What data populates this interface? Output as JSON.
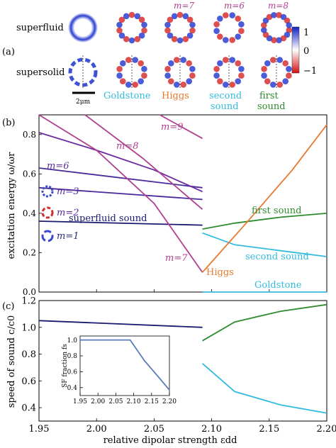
{
  "panel_a": {
    "letter": "(a)",
    "row_labels": [
      "superfluid",
      "supersolid"
    ],
    "m_labels": [
      "m=7",
      "m=6",
      "m=8"
    ],
    "mode_labels": [
      {
        "text": "Goldstone",
        "color": "#33bbdd"
      },
      {
        "text": "Higgs",
        "color": "#e8792e"
      },
      {
        "text": "second",
        "text2": "sound",
        "color": "#33bbdd"
      },
      {
        "text": "first",
        "text2": "sound",
        "color": "#2e8b2e"
      }
    ],
    "scale_bar_label": "2μm",
    "colorbar_ticks": [
      "1",
      "0",
      "−1"
    ]
  },
  "chart_data": [
    {
      "type": "line",
      "panel": "(b)",
      "ylabel": "excitation energy ω/ωr",
      "ylim": [
        0,
        0.9
      ],
      "xlim": [
        1.95,
        2.2
      ],
      "yticks": [
        "0.0",
        "0.2",
        "0.4",
        "0.6",
        "0.8"
      ],
      "annotations": [
        {
          "text": "m=8",
          "color": "#b04090"
        },
        {
          "text": "m=9",
          "color": "#b04090"
        },
        {
          "text": "m=6",
          "color": "#5a2ca0"
        },
        {
          "text": "m=3",
          "color": "#5a2ca0"
        },
        {
          "text": "m=2",
          "color": "#5a2ca0"
        },
        {
          "text": "m=1",
          "color": "#2a2a80"
        },
        {
          "text": "superfluid sound",
          "color": "#1a1a70"
        },
        {
          "text": "m=7",
          "color": "#b04090"
        },
        {
          "text": "first sound",
          "color": "#2e8b2e"
        },
        {
          "text": "second sound",
          "color": "#33bbdd"
        },
        {
          "text": "Higgs",
          "color": "#e8792e"
        },
        {
          "text": "Goldstone",
          "color": "#33bbdd"
        }
      ],
      "series": [
        {
          "name": "superfluid sound",
          "color": "#1a1a70",
          "x": [
            1.95,
            2.092
          ],
          "y": [
            0.36,
            0.34
          ]
        },
        {
          "name": "m=2",
          "color": "#4a2a9a",
          "x": [
            1.95,
            2.092
          ],
          "y": [
            0.53,
            0.47
          ]
        },
        {
          "name": "m=3",
          "color": "#4a2a9a",
          "x": [
            1.95,
            2.092
          ],
          "y": [
            0.63,
            0.53
          ]
        },
        {
          "name": "m=6",
          "color": "#6a2aa0",
          "x": [
            1.95,
            2.0,
            2.05,
            2.092
          ],
          "y": [
            0.81,
            0.72,
            0.62,
            0.51
          ]
        },
        {
          "name": "m=7",
          "color": "#b04090",
          "x": [
            1.95,
            2.0,
            2.05,
            2.092
          ],
          "y": [
            0.9,
            0.72,
            0.45,
            0.1
          ]
        },
        {
          "name": "m=8",
          "color": "#b04090",
          "x": [
            1.99,
            2.04,
            2.092
          ],
          "y": [
            0.9,
            0.68,
            0.42
          ]
        },
        {
          "name": "m=9",
          "color": "#b04090",
          "x": [
            2.055,
            2.092
          ],
          "y": [
            0.9,
            0.78
          ]
        },
        {
          "name": "Goldstone",
          "color": "#33bbdd",
          "x": [
            2.092,
            2.2
          ],
          "y": [
            0.0,
            0.0
          ]
        },
        {
          "name": "second sound",
          "color": "#33bbdd",
          "x": [
            2.092,
            2.12,
            2.16,
            2.2
          ],
          "y": [
            0.3,
            0.24,
            0.21,
            0.18
          ]
        },
        {
          "name": "first sound",
          "color": "#2e8b2e",
          "x": [
            2.092,
            2.12,
            2.16,
            2.2
          ],
          "y": [
            0.32,
            0.35,
            0.38,
            0.4
          ]
        },
        {
          "name": "Higgs",
          "color": "#e8792e",
          "x": [
            2.092,
            2.13,
            2.17,
            2.2
          ],
          "y": [
            0.1,
            0.35,
            0.62,
            0.85
          ]
        }
      ]
    },
    {
      "type": "line",
      "panel": "(c)",
      "xlabel": "relative dipolar strength εdd",
      "ylabel": "speed of sound c/c0",
      "ylim": [
        0.3,
        1.2
      ],
      "xlim": [
        1.95,
        2.2
      ],
      "xticks": [
        "1.95",
        "2.00",
        "2.05",
        "2.10",
        "2.15",
        "2.20"
      ],
      "yticks": [
        "0.4",
        "0.6",
        "0.8",
        "1.0",
        "1.2"
      ],
      "series": [
        {
          "color": "#1a1a70",
          "x": [
            1.95,
            2.092
          ],
          "y": [
            1.05,
            1.0
          ]
        },
        {
          "color": "#2e8b2e",
          "x": [
            2.092,
            2.12,
            2.16,
            2.2
          ],
          "y": [
            0.9,
            1.04,
            1.12,
            1.17
          ]
        },
        {
          "color": "#33bbdd",
          "x": [
            2.092,
            2.12,
            2.16,
            2.2
          ],
          "y": [
            0.73,
            0.52,
            0.42,
            0.36
          ]
        }
      ]
    },
    {
      "type": "line",
      "panel": "inset",
      "ylabel": "SF fraction fs",
      "xlim": [
        1.95,
        2.2
      ],
      "ylim": [
        0.3,
        1.05
      ],
      "xticks": [
        "1.95",
        "2.00",
        "2.05",
        "2.10",
        "2.15",
        "2.20"
      ],
      "yticks": [
        "0.4",
        "0.6",
        "0.8",
        "1.0"
      ],
      "series": [
        {
          "color": "#5a7ab8",
          "x": [
            1.95,
            2.09,
            2.13,
            2.17,
            2.2
          ],
          "y": [
            1.0,
            1.0,
            0.74,
            0.53,
            0.37
          ]
        }
      ]
    }
  ]
}
